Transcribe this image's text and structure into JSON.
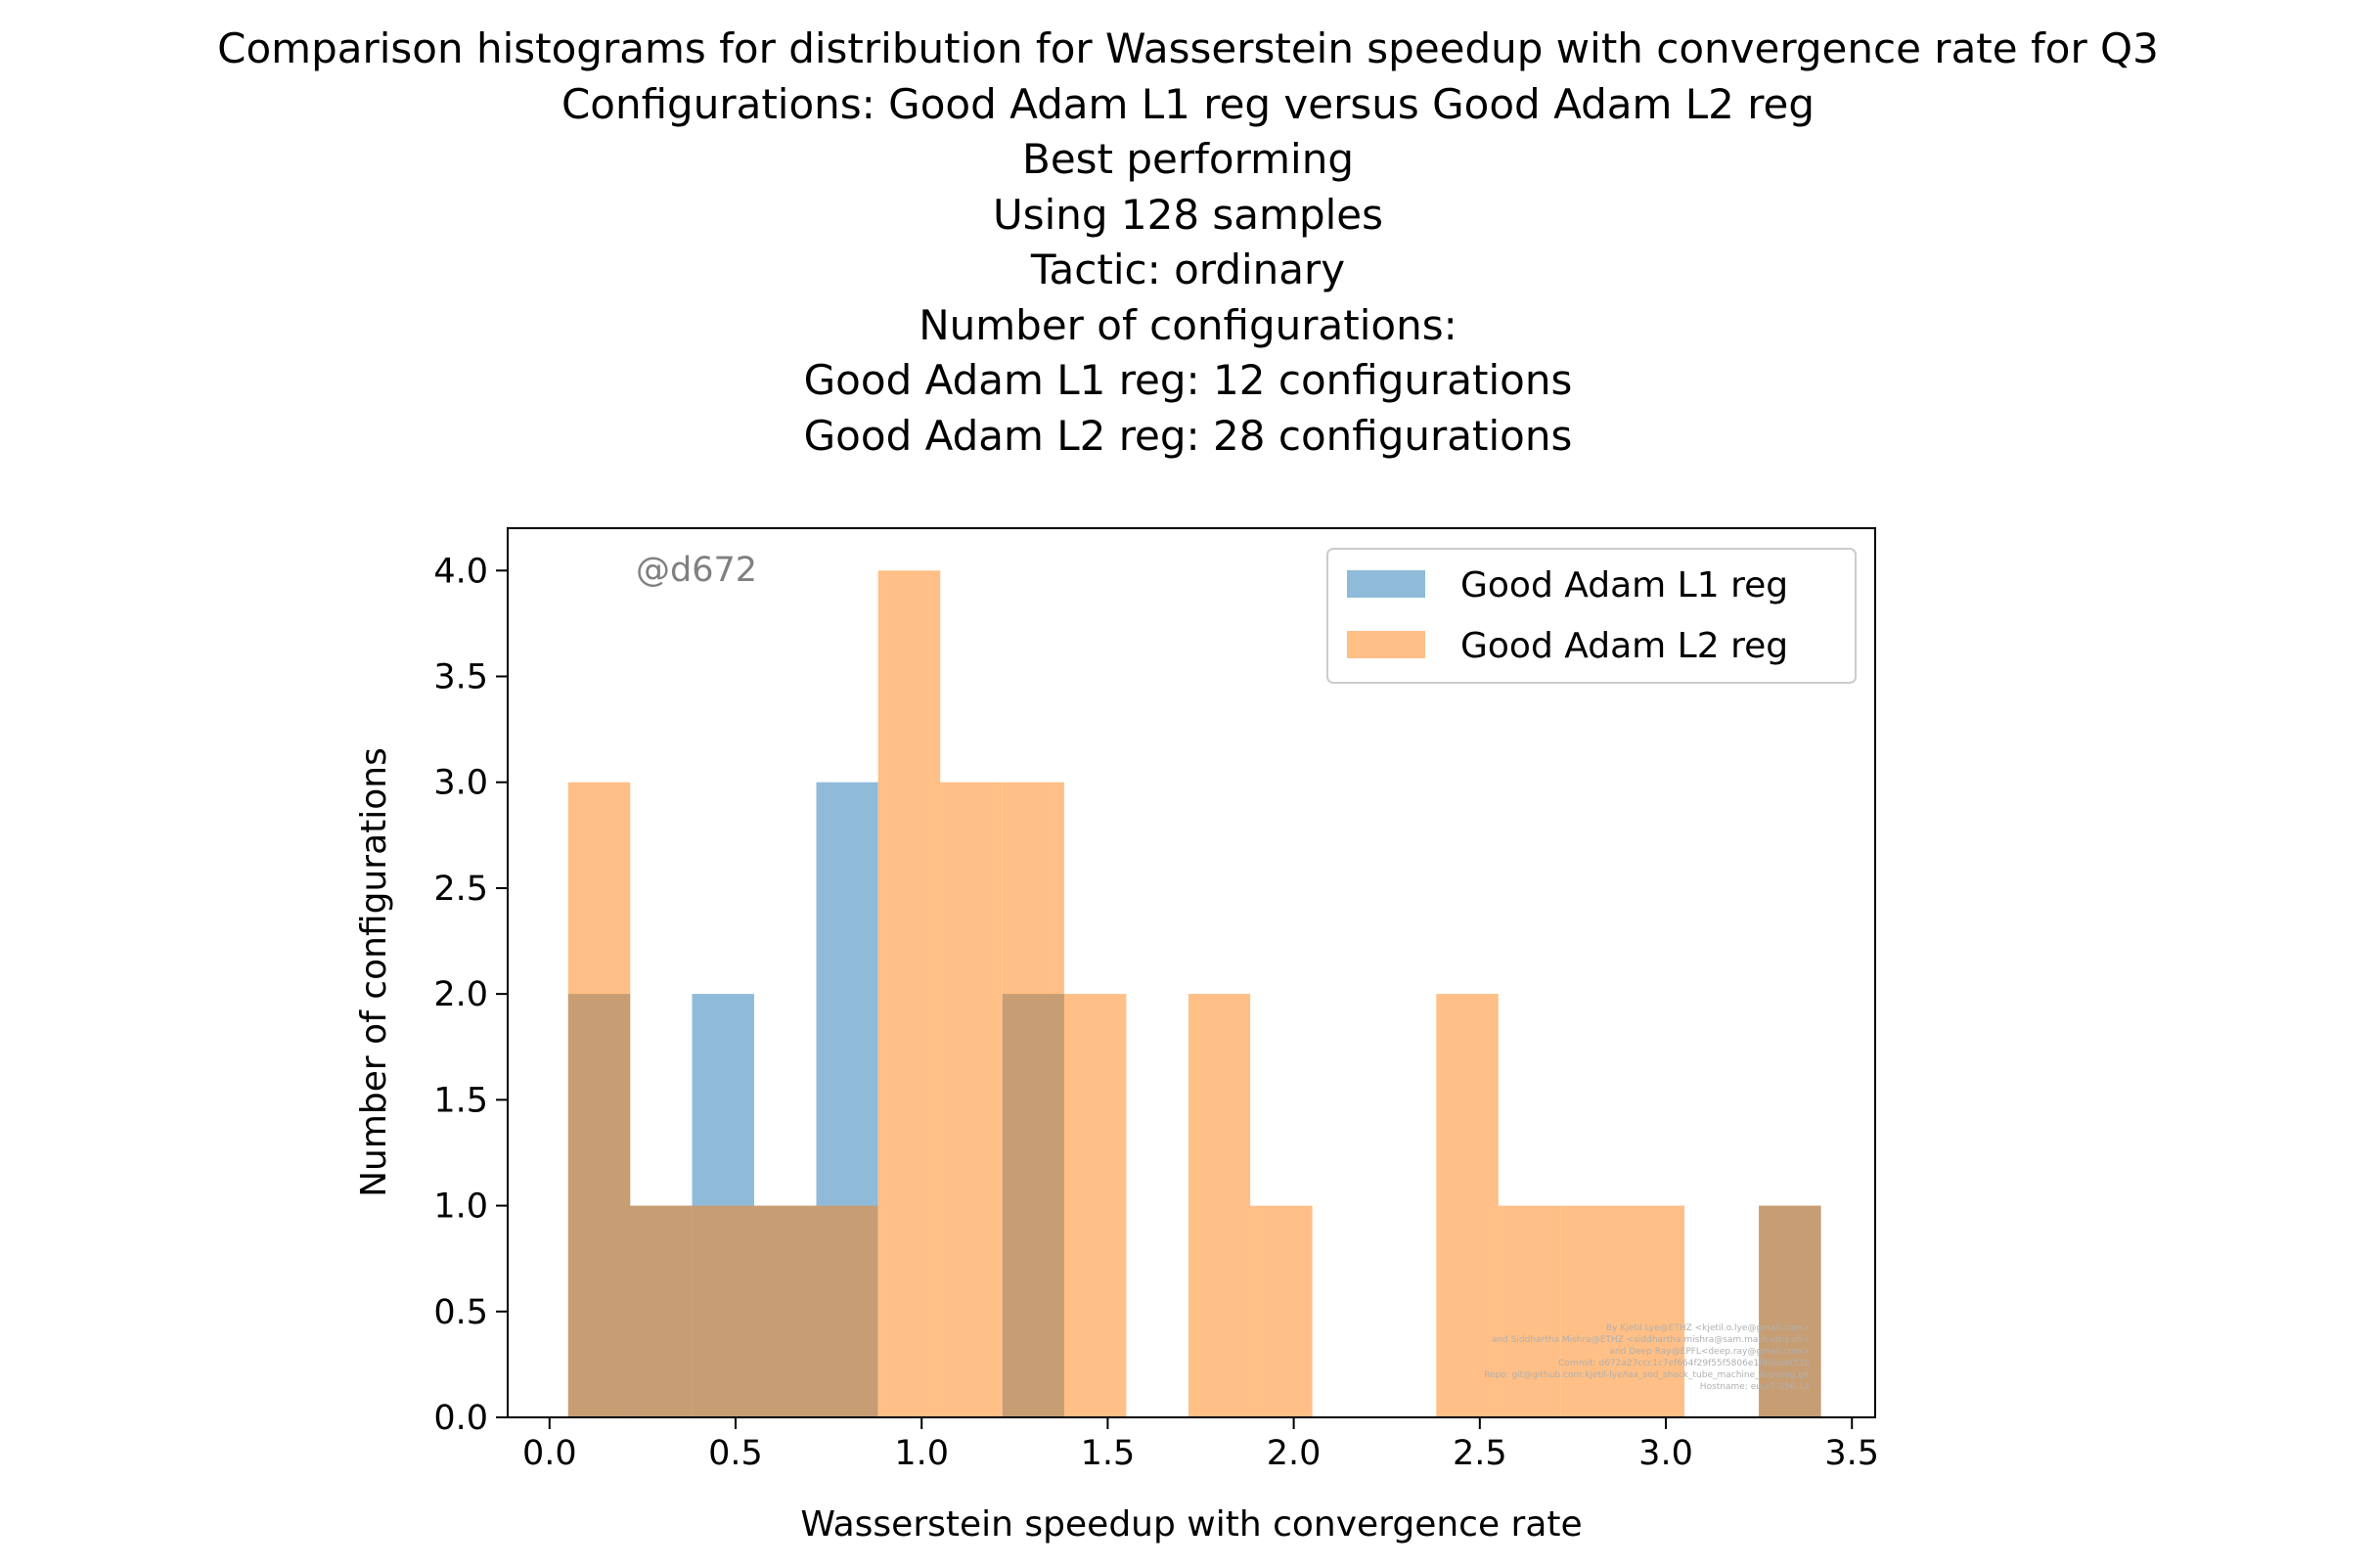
{
  "chart_data": {
    "type": "bar",
    "title_lines": [
      "Comparison histograms for distribution for Wasserstein speedup with convergence rate for Q3",
      "Configurations: Good Adam L1 reg versus Good Adam L2 reg",
      "Best performing",
      "Using 128 samples",
      "Tactic: ordinary",
      "Number of configurations:",
      "Good Adam L1 reg: 12 configurations",
      "Good Adam L2 reg: 28 configurations"
    ],
    "xlabel": "Wasserstein speedup with convergence rate",
    "ylabel": "Number of configurations",
    "xlim": [
      -0.1125,
      3.5625
    ],
    "ylim": [
      0,
      4.2
    ],
    "xticks": [
      "0.0",
      "0.5",
      "1.0",
      "1.5",
      "2.0",
      "2.5",
      "3.0",
      "3.5"
    ],
    "yticks": [
      "0.0",
      "0.5",
      "1.0",
      "1.5",
      "2.0",
      "2.5",
      "3.0",
      "3.5",
      "4.0"
    ],
    "legend_position": "upper right",
    "watermark": "@d672",
    "credits": [
      "By Kjetil Lye@ETHZ <kjetil.o.lye@gmail.com>",
      "and Siddhartha Mishra@ETHZ <siddhartha.mishra@sam.math.ethz.ch>",
      "and Deep Ray@EPFL<deep.ray@gmail.com>",
      "Commit: d672a27ccc1c7ef664f29f55f5806e1f89ab6f52b",
      "Repo: git@github.com:kjetil-lye/lax_sod_shock_tube_machine_learning.git",
      "Hostname: eu-c7-056-14"
    ],
    "series": [
      {
        "name": "Good Adam L1 reg",
        "color": "#1f77b4",
        "bins": [
          {
            "x0": 0.05,
            "x1": 0.217,
            "count": 2
          },
          {
            "x0": 0.217,
            "x1": 0.383,
            "count": 1
          },
          {
            "x0": 0.383,
            "x1": 0.55,
            "count": 2
          },
          {
            "x0": 0.55,
            "x1": 0.717,
            "count": 1
          },
          {
            "x0": 0.717,
            "x1": 0.883,
            "count": 3
          },
          {
            "x0": 1.217,
            "x1": 1.383,
            "count": 2
          },
          {
            "x0": 3.25,
            "x1": 3.417,
            "count": 1
          }
        ]
      },
      {
        "name": "Good Adam L2 reg",
        "color": "#ff7f0e",
        "bins": [
          {
            "x0": 0.05,
            "x1": 0.217,
            "count": 3
          },
          {
            "x0": 0.217,
            "x1": 0.383,
            "count": 1
          },
          {
            "x0": 0.383,
            "x1": 0.55,
            "count": 1
          },
          {
            "x0": 0.55,
            "x1": 0.717,
            "count": 1
          },
          {
            "x0": 0.717,
            "x1": 0.883,
            "count": 1
          },
          {
            "x0": 0.883,
            "x1": 1.05,
            "count": 4
          },
          {
            "x0": 1.05,
            "x1": 1.217,
            "count": 3
          },
          {
            "x0": 1.217,
            "x1": 1.383,
            "count": 3
          },
          {
            "x0": 1.383,
            "x1": 1.55,
            "count": 2
          },
          {
            "x0": 1.717,
            "x1": 1.883,
            "count": 2
          },
          {
            "x0": 1.883,
            "x1": 2.05,
            "count": 1
          },
          {
            "x0": 2.383,
            "x1": 2.55,
            "count": 2
          },
          {
            "x0": 2.55,
            "x1": 2.717,
            "count": 1
          },
          {
            "x0": 2.717,
            "x1": 2.883,
            "count": 1
          },
          {
            "x0": 2.883,
            "x1": 3.05,
            "count": 1
          },
          {
            "x0": 3.25,
            "x1": 3.417,
            "count": 1
          }
        ]
      }
    ]
  }
}
